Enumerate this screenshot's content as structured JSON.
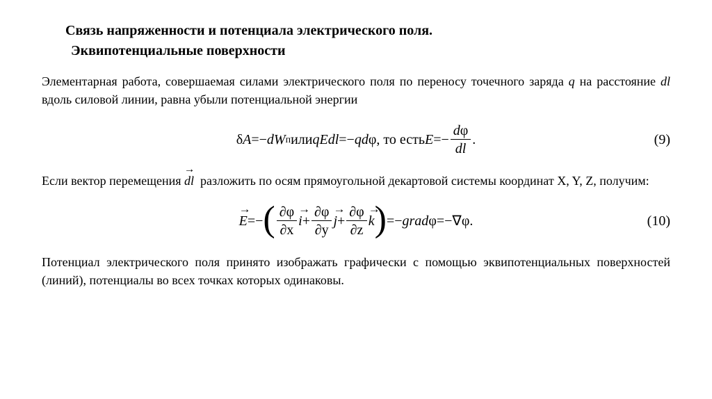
{
  "title_line1": "Связь напряженности и потенциала электрического поля.",
  "title_line2": "Эквипотенциальные поверхности",
  "para1_a": "Элементарная работа, совершаемая силами электрического поля по переносу точечного заряда ",
  "para1_q": "q",
  "para1_b": " на расстояние ",
  "para1_dl": "dl",
  "para1_c": " вдоль силовой линии, равна убыли потенциальной энергии",
  "eq9": {
    "lhs_delta": "δ",
    "lhs_A": "A",
    "eq": " = ",
    "minus": "−",
    "dW": "dW",
    "sub_p": "п",
    "or": " или ",
    "qEdl": "qEdl",
    "minus_qdphi": "qd",
    "phi": "φ",
    "thus": ", то есть ",
    "E": "E",
    "num_dphi": "dφ",
    "den_dl": "dl",
    "dot": ".",
    "number": "(9)"
  },
  "para2_a": "Если вектор перемещения ",
  "para2_dl": "dl",
  "para2_b": " разложить по осям прямоугольной декартовой системы координат X, Y, Z, получим:",
  "eq10": {
    "E": "E",
    "eq": " = ",
    "minus": "−",
    "dphi": "∂φ",
    "dx": "∂x",
    "dy": "∂y",
    "dz": "∂z",
    "i": "i",
    "j": "j",
    "k": "k",
    "plus": " + ",
    "grad": "grad",
    "phi": "φ",
    "nabla": "∇",
    "dot": ".",
    "number": "(10)"
  },
  "para3": "Потенциал электрического поля принято изображать графически с помощью эквипотенциальных поверхностей (линий), потенциалы во всех точках которых одинаковы."
}
